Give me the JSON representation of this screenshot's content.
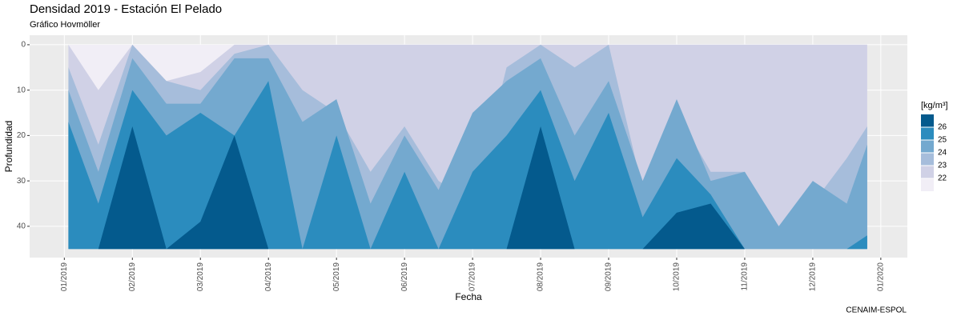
{
  "chart_data": {
    "type": "hovmoller",
    "title": "Densidad 2019 - Estación El Pelado",
    "subtitle": "Gráfico Hovmöller",
    "x_label": "Fecha",
    "y_label": "Profundidad",
    "caption": "CENAIM-ESPOL",
    "legend_title": "[kg/m³]",
    "legend_ticks": [
      22,
      23,
      24,
      25,
      26
    ],
    "y_reversed": true,
    "grid": true,
    "xlim": [
      -0.51,
      12.39
    ],
    "ylim": [
      -2.1,
      46.9
    ],
    "xticks": [
      {
        "value": 0,
        "label": "01/2019"
      },
      {
        "value": 1,
        "label": "02/2019"
      },
      {
        "value": 2,
        "label": "03/2019"
      },
      {
        "value": 3,
        "label": "04/2019"
      },
      {
        "value": 4,
        "label": "05/2019"
      },
      {
        "value": 5,
        "label": "06/2019"
      },
      {
        "value": 6,
        "label": "07/2019"
      },
      {
        "value": 7,
        "label": "08/2019"
      },
      {
        "value": 8,
        "label": "09/2019"
      },
      {
        "value": 9,
        "label": "10/2019"
      },
      {
        "value": 10,
        "label": "11/2019"
      },
      {
        "value": 11,
        "label": "12/2019"
      },
      {
        "value": 12,
        "label": "01/2020"
      }
    ],
    "yticks": [
      0,
      10,
      20,
      30,
      40
    ],
    "x": [
      0.06,
      0.5,
      1,
      1.5,
      2,
      2.5,
      3,
      3.5,
      4,
      4.5,
      5,
      5.5,
      6,
      6.5,
      7,
      7.5,
      8,
      8.5,
      9,
      9.5,
      10,
      10.5,
      11,
      11.5,
      11.8
    ],
    "series": [
      {
        "color": "#f1eef6",
        "values": [
          0,
          0,
          0,
          0,
          0,
          0,
          0,
          0,
          0,
          0,
          0,
          0,
          0,
          0,
          0,
          0,
          0,
          0,
          0,
          0,
          0,
          0,
          0,
          0,
          0
        ]
      },
      {
        "color": "#d0d1e6",
        "values": [
          0,
          10,
          0,
          8,
          6,
          0,
          0,
          0,
          0,
          0,
          0,
          0,
          0,
          0,
          0,
          0,
          0,
          0,
          0,
          0,
          0,
          0,
          0,
          0,
          0
        ]
      },
      {
        "color": "#a6bddb",
        "values": [
          5,
          22,
          0,
          8,
          10,
          2,
          0,
          10,
          15,
          28,
          18,
          30,
          35,
          5,
          0,
          5,
          0,
          32,
          15,
          28,
          28,
          40,
          35,
          25,
          18
        ]
      },
      {
        "color": "#74a9cf",
        "values": [
          10,
          28,
          3,
          13,
          13,
          3,
          3,
          17,
          12,
          35,
          20,
          32,
          15,
          8,
          3,
          20,
          8,
          30,
          12,
          30,
          28,
          40,
          30,
          35,
          22
        ]
      },
      {
        "color": "#2b8cbe",
        "values": [
          17,
          35,
          10,
          20,
          15,
          20,
          8,
          45,
          20,
          45,
          28,
          45,
          28,
          20,
          10,
          30,
          15,
          38,
          25,
          33,
          45,
          45,
          45,
          45,
          42
        ]
      },
      {
        "color": "#045a8d",
        "values": [
          45,
          45,
          18,
          45,
          39,
          20,
          45,
          45,
          45,
          45,
          45,
          45,
          45,
          45,
          18,
          45,
          45,
          45,
          37,
          35,
          45,
          45,
          45,
          45,
          45
        ]
      }
    ]
  }
}
